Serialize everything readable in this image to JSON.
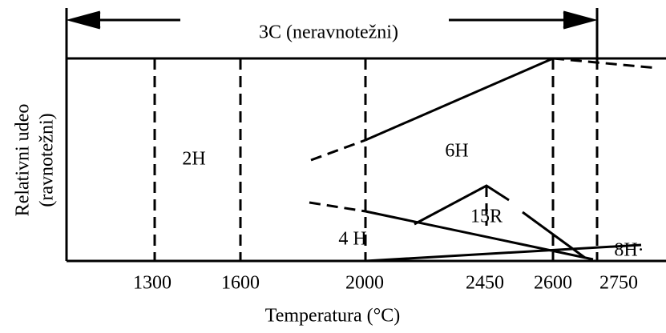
{
  "title": "3C   (neravnotežni)",
  "y_label": [
    "Relativni udeo",
    "(ravnotežni)"
  ],
  "x_label": "Temperatura (°C)",
  "x_ticks": [
    "1300",
    "1600",
    "2000",
    "2450",
    "2600",
    "2750"
  ],
  "regions": [
    "2H",
    "6H",
    "15R",
    "4 H",
    "8H·"
  ]
}
